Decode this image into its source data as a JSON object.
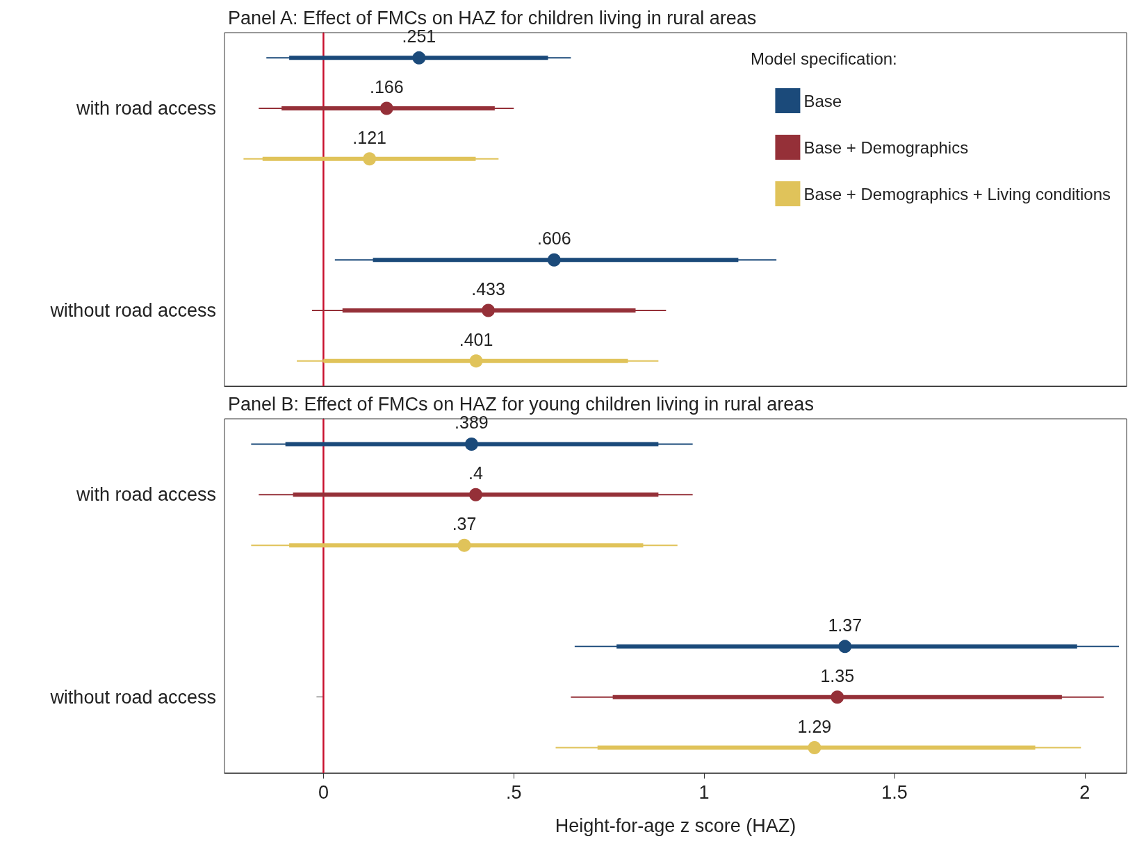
{
  "chart_data": [
    {
      "type": "scatter",
      "orientation": "horizontal",
      "title": "Panel A: Effect of FMCs on HAZ for children living in rural areas",
      "legend_title": "Model specification:",
      "legend": "top right",
      "grid": false,
      "tick_labels": "y",
      "xlim": [
        -0.26,
        2.11
      ],
      "categories": [
        null,
        "with road access",
        null,
        null,
        null,
        "without road access",
        null
      ],
      "ref_lines": [
        {
          "axis": "x",
          "value": 0,
          "color": "#c8102e"
        }
      ],
      "series": [
        {
          "type": "bar",
          "name": "Base",
          "color": "#1b4a7a",
          "base": [
            -0.09,
            null,
            null,
            null,
            0.13,
            null,
            null
          ],
          "values": [
            0.68,
            null,
            null,
            null,
            0.96,
            null,
            null
          ]
        },
        {
          "type": "bar",
          "name": "Base + Demographics",
          "color": "#953038",
          "base": [
            null,
            -0.11,
            null,
            null,
            null,
            0.05,
            null
          ],
          "values": [
            null,
            0.56,
            null,
            null,
            null,
            0.77,
            null
          ]
        },
        {
          "type": "bar",
          "name": "Base + Demographics + Living conditions",
          "color": "#e0c35a",
          "base": [
            null,
            null,
            -0.16,
            null,
            null,
            null,
            0.0
          ],
          "values": [
            null,
            null,
            0.56,
            null,
            null,
            null,
            0.8
          ]
        },
        {
          "color": "#1b4a7a",
          "values": [
            0.251,
            null,
            null,
            null,
            0.606,
            null,
            null
          ],
          "errors": [
            [
              -0.15,
              0.65
            ],
            null,
            null,
            null,
            [
              0.03,
              1.19
            ],
            null,
            null
          ],
          "value_labels": [
            ".251",
            null,
            null,
            null,
            ".606",
            null,
            null
          ]
        },
        {
          "color": "#953038",
          "values": [
            null,
            0.166,
            null,
            null,
            null,
            0.433,
            null
          ],
          "errors": [
            null,
            [
              -0.17,
              0.5
            ],
            null,
            null,
            null,
            [
              -0.03,
              0.9
            ],
            null
          ],
          "value_labels": [
            null,
            ".166",
            null,
            null,
            null,
            ".433",
            null
          ]
        },
        {
          "color": "#e0c35a",
          "values": [
            null,
            null,
            0.121,
            null,
            null,
            null,
            0.401
          ],
          "errors": [
            null,
            null,
            [
              -0.21,
              0.46
            ],
            null,
            null,
            null,
            [
              -0.07,
              0.88
            ]
          ],
          "value_labels": [
            null,
            null,
            ".121",
            null,
            null,
            null,
            ".401"
          ]
        }
      ]
    },
    {
      "type": "scatter",
      "orientation": "horizontal",
      "title": "Panel B: Effect of FMCs on HAZ for young children living in rural areas",
      "xlabel": "Height-for-age z score (HAZ)",
      "grid": false,
      "xlim": [
        -0.26,
        2.11
      ],
      "xticks": [
        0,
        {
          "value": 0.5,
          "label": ".5"
        },
        1,
        1.5,
        2
      ],
      "categories": [
        null,
        "with road access",
        null,
        null,
        null,
        "without road access",
        null
      ],
      "ref_lines": [
        {
          "axis": "x",
          "value": 0,
          "color": "#c8102e"
        }
      ],
      "series": [
        {
          "type": "bar",
          "color": "#1b4a7a",
          "base": [
            -0.1,
            null,
            null,
            null,
            0.77,
            null,
            null
          ],
          "values": [
            0.98,
            null,
            null,
            null,
            1.21,
            null,
            null
          ]
        },
        {
          "type": "bar",
          "color": "#953038",
          "base": [
            null,
            -0.08,
            null,
            null,
            null,
            0.76,
            null
          ],
          "values": [
            null,
            0.96,
            null,
            null,
            null,
            1.18,
            null
          ]
        },
        {
          "type": "bar",
          "color": "#e0c35a",
          "base": [
            null,
            null,
            -0.09,
            null,
            null,
            null,
            0.72
          ],
          "values": [
            null,
            null,
            0.93,
            null,
            null,
            null,
            1.15
          ]
        },
        {
          "color": "#1b4a7a",
          "values": [
            0.389,
            null,
            null,
            null,
            1.37,
            null,
            null
          ],
          "errors": [
            [
              -0.19,
              0.97
            ],
            null,
            null,
            null,
            [
              0.66,
              2.09
            ],
            null,
            null
          ],
          "value_labels": [
            ".389",
            null,
            null,
            null,
            "1.37",
            null,
            null
          ]
        },
        {
          "color": "#953038",
          "values": [
            null,
            0.4,
            null,
            null,
            null,
            1.35,
            null
          ],
          "errors": [
            null,
            [
              -0.17,
              0.97
            ],
            null,
            null,
            null,
            [
              0.65,
              2.05
            ],
            null
          ],
          "value_labels": [
            null,
            ".4",
            null,
            null,
            null,
            "1.35",
            null
          ]
        },
        {
          "color": "#e0c35a",
          "values": [
            null,
            null,
            0.37,
            null,
            null,
            null,
            1.29
          ],
          "errors": [
            null,
            null,
            [
              -0.19,
              0.93
            ],
            null,
            null,
            null,
            [
              0.61,
              1.99
            ]
          ],
          "value_labels": [
            null,
            null,
            ".37",
            null,
            null,
            null,
            "1.29"
          ]
        }
      ]
    }
  ]
}
